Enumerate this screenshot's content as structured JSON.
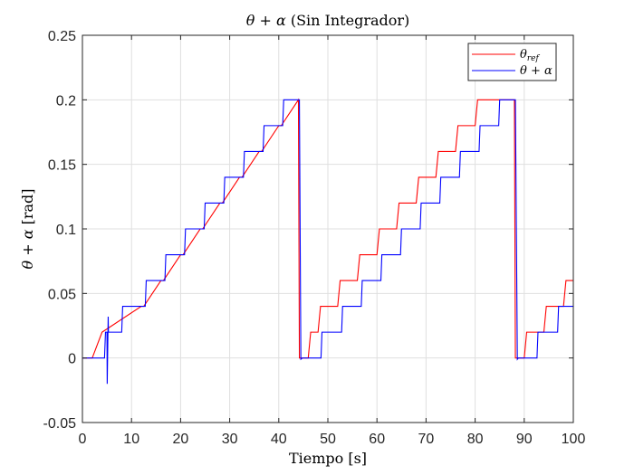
{
  "chart_data": {
    "type": "line",
    "title_parts": {
      "math": "θ + α",
      "plain": " (Sin Integrador)"
    },
    "xlabel": "Tiempo [s]",
    "ylabel_parts": {
      "math": "θ + α",
      "plain": " [rad]"
    },
    "xlim": [
      0,
      100
    ],
    "ylim": [
      -0.05,
      0.25
    ],
    "xticks": [
      0,
      10,
      20,
      30,
      40,
      50,
      60,
      70,
      80,
      90,
      100
    ],
    "yticks": [
      -0.05,
      0,
      0.05,
      0.1,
      0.15,
      0.2,
      0.25
    ],
    "xtick_labels": [
      "0",
      "10",
      "20",
      "30",
      "40",
      "50",
      "60",
      "70",
      "80",
      "90",
      "100"
    ],
    "ytick_labels": [
      "-0.05",
      "0",
      "0.05",
      "0.1",
      "0.15",
      "0.2",
      "0.25"
    ],
    "grid": true,
    "legend_position": "top-right",
    "series": [
      {
        "name_parts": {
          "base": "θ",
          "sub": "ref"
        },
        "color": "#ff0000",
        "x": [
          0,
          2,
          4,
          12,
          12.5,
          16,
          16.5,
          20,
          20.5,
          24,
          24.5,
          28,
          28.5,
          32,
          32.5,
          36,
          36.5,
          40,
          40.5,
          44,
          44.2,
          46,
          46.5,
          48,
          48.5,
          52,
          52.5,
          56,
          56.5,
          60,
          60.5,
          64,
          64.5,
          68,
          68.5,
          72,
          72.5,
          76,
          76.5,
          80,
          80.5,
          84,
          84.5,
          88,
          88.2,
          90,
          90.5,
          94,
          94.5,
          98,
          98.5,
          100,
          100
        ],
        "y": [
          0,
          0,
          0.02,
          0.04,
          0.04,
          0.06,
          0.06,
          0.08,
          0.08,
          0.1,
          0.1,
          0.12,
          0.12,
          0.14,
          0.14,
          0.16,
          0.16,
          0.18,
          0.18,
          0.2,
          0,
          0,
          0.02,
          0.02,
          0.04,
          0.04,
          0.06,
          0.06,
          0.08,
          0.08,
          0.1,
          0.1,
          0.12,
          0.12,
          0.14,
          0.14,
          0.16,
          0.16,
          0.18,
          0.18,
          0.2,
          0.2,
          0.2,
          0.2,
          0,
          0,
          0.02,
          0.02,
          0.04,
          0.04,
          0.06,
          0.06,
          0.06
        ]
      },
      {
        "name_parts": {
          "base": "θ + α",
          "sub": ""
        },
        "color": "#0000ff",
        "x": [
          0,
          4.5,
          4.7,
          5.0,
          5.05,
          5.25,
          5.3,
          5.45,
          5.5,
          8,
          8.2,
          11,
          11.2,
          12.8,
          13.0,
          16.8,
          17.0,
          20.8,
          21.0,
          24.8,
          25.0,
          28.8,
          29.0,
          32.8,
          33.0,
          36.8,
          37.0,
          40.8,
          41.0,
          44.2,
          44.5,
          44.8,
          48.6,
          48.8,
          52.8,
          53.0,
          56.8,
          57.0,
          60.8,
          61.0,
          64.8,
          65.0,
          68.8,
          69.0,
          72.8,
          73.0,
          76.8,
          77.0,
          80.8,
          81.0,
          84.8,
          85.0,
          88.2,
          88.6,
          88.8,
          92.6,
          92.8,
          96.8,
          97.0,
          100
        ],
        "y": [
          0,
          0,
          0.02,
          0.02,
          -0.02,
          0.032,
          0.02,
          0.02,
          0.02,
          0.02,
          0.04,
          0.04,
          0.04,
          0.04,
          0.06,
          0.06,
          0.08,
          0.08,
          0.1,
          0.1,
          0.12,
          0.12,
          0.14,
          0.14,
          0.16,
          0.16,
          0.18,
          0.18,
          0.2,
          0.2,
          -0.001,
          0,
          0,
          0.02,
          0.02,
          0.04,
          0.04,
          0.06,
          0.06,
          0.08,
          0.08,
          0.1,
          0.1,
          0.12,
          0.12,
          0.14,
          0.14,
          0.16,
          0.16,
          0.18,
          0.18,
          0.2,
          0.2,
          -0.001,
          0,
          0,
          0.02,
          0.02,
          0.04,
          0.04
        ]
      }
    ]
  }
}
